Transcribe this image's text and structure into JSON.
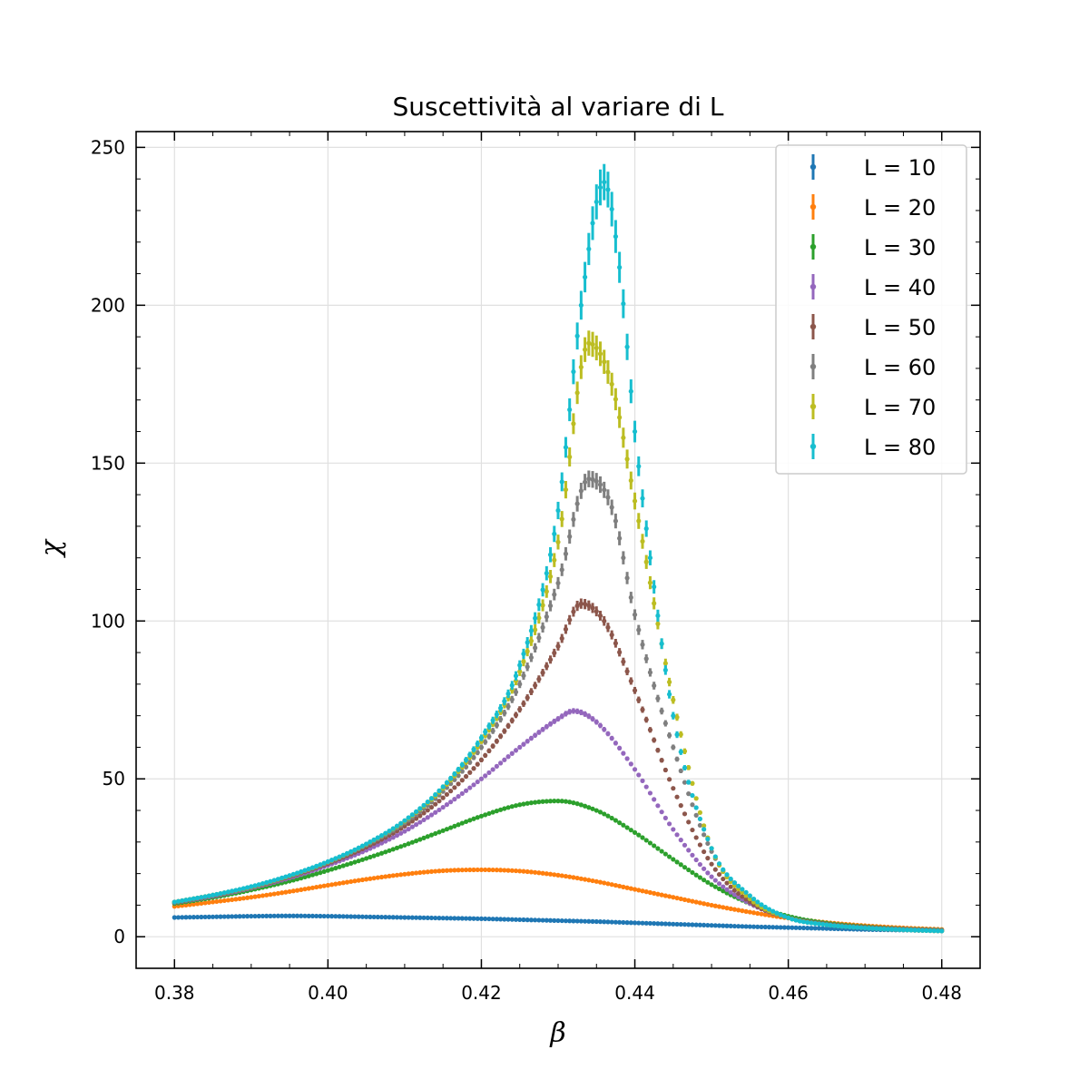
{
  "chart_data": {
    "type": "scatter",
    "title": "Suscettività al variare di L",
    "xlabel": "β",
    "ylabel": "χ",
    "xlim": [
      0.375,
      0.485
    ],
    "ylim": [
      -10,
      255
    ],
    "xticks": [
      0.38,
      0.4,
      0.42,
      0.44,
      0.46,
      0.48
    ],
    "xtick_labels": [
      "0.38",
      "0.40",
      "0.42",
      "0.44",
      "0.46",
      "0.48"
    ],
    "yticks": [
      0,
      50,
      100,
      150,
      200,
      250
    ],
    "ytick_labels": [
      "0",
      "50",
      "100",
      "150",
      "200",
      "250"
    ],
    "grid": true,
    "legend_position": "top-right",
    "series": [
      {
        "name": "L = 10",
        "color": "#1f77b4",
        "points": [
          [
            0.38,
            6.1
          ],
          [
            0.385,
            6.3
          ],
          [
            0.39,
            6.5
          ],
          [
            0.395,
            6.6
          ],
          [
            0.4,
            6.5
          ],
          [
            0.405,
            6.3
          ],
          [
            0.41,
            6.1
          ],
          [
            0.415,
            5.9
          ],
          [
            0.42,
            5.7
          ],
          [
            0.425,
            5.4
          ],
          [
            0.43,
            5.1
          ],
          [
            0.435,
            4.8
          ],
          [
            0.44,
            4.4
          ],
          [
            0.445,
            4.0
          ],
          [
            0.45,
            3.6
          ],
          [
            0.455,
            3.2
          ],
          [
            0.46,
            2.9
          ],
          [
            0.465,
            2.6
          ],
          [
            0.47,
            2.3
          ],
          [
            0.475,
            2.1
          ],
          [
            0.48,
            1.9
          ]
        ]
      },
      {
        "name": "L = 20",
        "color": "#ff7f0e",
        "points": [
          [
            0.38,
            9.6
          ],
          [
            0.385,
            11.0
          ],
          [
            0.39,
            12.5
          ],
          [
            0.395,
            14.3
          ],
          [
            0.4,
            16.3
          ],
          [
            0.405,
            18.2
          ],
          [
            0.41,
            19.8
          ],
          [
            0.415,
            20.9
          ],
          [
            0.42,
            21.2
          ],
          [
            0.425,
            20.8
          ],
          [
            0.43,
            19.5
          ],
          [
            0.435,
            17.5
          ],
          [
            0.44,
            15.0
          ],
          [
            0.445,
            12.5
          ],
          [
            0.45,
            10.0
          ],
          [
            0.455,
            7.8
          ],
          [
            0.46,
            5.9
          ],
          [
            0.465,
            4.5
          ],
          [
            0.47,
            3.5
          ],
          [
            0.475,
            2.8
          ],
          [
            0.48,
            2.3
          ]
        ]
      },
      {
        "name": "L = 30",
        "color": "#2ca02c",
        "points": [
          [
            0.38,
            10.5
          ],
          [
            0.385,
            12.4
          ],
          [
            0.39,
            14.8
          ],
          [
            0.395,
            17.6
          ],
          [
            0.4,
            21.0
          ],
          [
            0.405,
            24.8
          ],
          [
            0.41,
            29.0
          ],
          [
            0.415,
            33.6
          ],
          [
            0.42,
            38.2
          ],
          [
            0.425,
            41.8
          ],
          [
            0.43,
            43.0
          ],
          [
            0.435,
            40.0
          ],
          [
            0.44,
            33.0
          ],
          [
            0.445,
            24.5
          ],
          [
            0.45,
            16.5
          ],
          [
            0.455,
            10.5
          ],
          [
            0.46,
            6.5
          ],
          [
            0.465,
            4.3
          ],
          [
            0.47,
            3.2
          ],
          [
            0.475,
            2.5
          ],
          [
            0.48,
            2.1
          ]
        ]
      },
      {
        "name": "L = 40",
        "color": "#9467bd",
        "points": [
          [
            0.38,
            10.8
          ],
          [
            0.385,
            12.8
          ],
          [
            0.39,
            15.4
          ],
          [
            0.395,
            18.6
          ],
          [
            0.4,
            22.6
          ],
          [
            0.405,
            27.4
          ],
          [
            0.41,
            33.4
          ],
          [
            0.415,
            41.0
          ],
          [
            0.42,
            50.0
          ],
          [
            0.425,
            60.0
          ],
          [
            0.43,
            69.0
          ],
          [
            0.432,
            71.5
          ],
          [
            0.435,
            68.0
          ],
          [
            0.44,
            53.0
          ],
          [
            0.445,
            34.0
          ],
          [
            0.45,
            19.0
          ],
          [
            0.455,
            10.5
          ],
          [
            0.46,
            6.0
          ],
          [
            0.465,
            4.0
          ],
          [
            0.47,
            3.0
          ],
          [
            0.475,
            2.4
          ],
          [
            0.48,
            2.0
          ]
        ]
      },
      {
        "name": "L = 50",
        "color": "#8c564b",
        "points": [
          [
            0.38,
            10.9
          ],
          [
            0.385,
            13.0
          ],
          [
            0.39,
            15.6
          ],
          [
            0.395,
            19.0
          ],
          [
            0.4,
            23.2
          ],
          [
            0.405,
            28.4
          ],
          [
            0.41,
            35.0
          ],
          [
            0.415,
            44.0
          ],
          [
            0.42,
            56.0
          ],
          [
            0.425,
            72.0
          ],
          [
            0.43,
            92.0
          ],
          [
            0.433,
            105.5
          ],
          [
            0.436,
            100.0
          ],
          [
            0.44,
            78.0
          ],
          [
            0.445,
            47.0
          ],
          [
            0.45,
            23.0
          ],
          [
            0.455,
            11.0
          ],
          [
            0.46,
            6.0
          ],
          [
            0.465,
            4.0
          ],
          [
            0.47,
            3.0
          ],
          [
            0.475,
            2.3
          ],
          [
            0.48,
            1.9
          ]
        ]
      },
      {
        "name": "L = 60",
        "color": "#7f7f7f",
        "points": [
          [
            0.38,
            11.0
          ],
          [
            0.385,
            13.1
          ],
          [
            0.39,
            15.7
          ],
          [
            0.395,
            19.2
          ],
          [
            0.4,
            23.5
          ],
          [
            0.405,
            29.0
          ],
          [
            0.41,
            36.0
          ],
          [
            0.415,
            46.0
          ],
          [
            0.42,
            60.0
          ],
          [
            0.425,
            80.0
          ],
          [
            0.43,
            112.0
          ],
          [
            0.434,
            145.0
          ],
          [
            0.437,
            136.0
          ],
          [
            0.44,
            102.0
          ],
          [
            0.445,
            60.0
          ],
          [
            0.45,
            27.0
          ],
          [
            0.455,
            12.0
          ],
          [
            0.46,
            6.0
          ],
          [
            0.465,
            3.8
          ],
          [
            0.47,
            2.8
          ],
          [
            0.475,
            2.2
          ],
          [
            0.48,
            1.8
          ]
        ]
      },
      {
        "name": "L = 70",
        "color": "#bcbd22",
        "points": [
          [
            0.38,
            11.0
          ],
          [
            0.385,
            13.2
          ],
          [
            0.39,
            15.8
          ],
          [
            0.395,
            19.3
          ],
          [
            0.4,
            23.7
          ],
          [
            0.405,
            29.3
          ],
          [
            0.41,
            36.6
          ],
          [
            0.415,
            47.0
          ],
          [
            0.42,
            62.0
          ],
          [
            0.425,
            84.0
          ],
          [
            0.43,
            125.0
          ],
          [
            0.434,
            188.0
          ],
          [
            0.437,
            175.0
          ],
          [
            0.44,
            138.0
          ],
          [
            0.445,
            75.0
          ],
          [
            0.45,
            28.0
          ],
          [
            0.455,
            12.0
          ],
          [
            0.46,
            6.0
          ],
          [
            0.465,
            3.8
          ],
          [
            0.47,
            2.8
          ],
          [
            0.475,
            2.2
          ],
          [
            0.48,
            1.8
          ]
        ]
      },
      {
        "name": "L = 80",
        "color": "#17becf",
        "points": [
          [
            0.38,
            11.0
          ],
          [
            0.385,
            13.2
          ],
          [
            0.39,
            15.9
          ],
          [
            0.395,
            19.4
          ],
          [
            0.4,
            23.8
          ],
          [
            0.405,
            29.4
          ],
          [
            0.41,
            36.8
          ],
          [
            0.415,
            47.5
          ],
          [
            0.42,
            63.0
          ],
          [
            0.425,
            86.0
          ],
          [
            0.43,
            135.0
          ],
          [
            0.433,
            200.0
          ],
          [
            0.436,
            239.0
          ],
          [
            0.438,
            212.0
          ],
          [
            0.44,
            160.0
          ],
          [
            0.442,
            120.0
          ],
          [
            0.445,
            70.0
          ],
          [
            0.45,
            28.0
          ],
          [
            0.455,
            13.0
          ],
          [
            0.46,
            6.0
          ],
          [
            0.465,
            3.8
          ],
          [
            0.47,
            2.8
          ],
          [
            0.475,
            2.2
          ],
          [
            0.48,
            1.8
          ]
        ]
      }
    ]
  }
}
